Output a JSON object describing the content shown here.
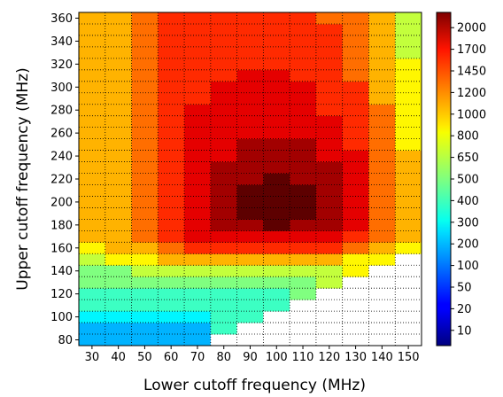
{
  "chart_data": {
    "type": "heatmap",
    "xlabel": "Lower cutoff frequency (MHz)",
    "ylabel": "Upper cutoff frequency (MHz)",
    "x_categories": [
      "30",
      "40",
      "50",
      "60",
      "70",
      "80",
      "90",
      "100",
      "110",
      "120",
      "130",
      "140",
      "150"
    ],
    "y_categories": [
      "80",
      "90",
      "100",
      "110",
      "120",
      "130",
      "140",
      "150",
      "160",
      "170",
      "180",
      "190",
      "200",
      "210",
      "220",
      "230",
      "240",
      "250",
      "260",
      "270",
      "280",
      "290",
      "300",
      "310",
      "320",
      "330",
      "340",
      "350",
      "360"
    ],
    "y_tick_labels": [
      "80",
      "100",
      "120",
      "140",
      "160",
      "180",
      "200",
      "220",
      "240",
      "260",
      "280",
      "300",
      "320",
      "340",
      "360"
    ],
    "colorbar_ticks": [
      "10",
      "20",
      "50",
      "100",
      "200",
      "300",
      "400",
      "500",
      "650",
      "800",
      "1000",
      "1200",
      "1450",
      "1700",
      "2000"
    ],
    "colorbar_range": [
      10,
      2200
    ],
    "colormap": "jet",
    "grid": true,
    "grid_style": "dotted",
    "missing_color": "#ffffff",
    "values": [
      [
        5,
        5,
        5,
        5,
        5,
        0,
        0,
        0,
        0,
        0,
        0,
        0,
        0
      ],
      [
        5,
        5,
        5,
        5,
        5,
        7,
        0,
        0,
        0,
        0,
        0,
        0,
        0
      ],
      [
        6,
        6,
        6,
        6,
        6,
        7,
        7,
        0,
        0,
        0,
        0,
        0,
        0
      ],
      [
        7,
        7,
        7,
        7,
        7,
        7,
        7,
        7,
        0,
        0,
        0,
        0,
        0
      ],
      [
        7,
        7,
        7,
        7,
        7,
        7,
        7,
        7,
        8,
        0,
        0,
        0,
        0
      ],
      [
        8,
        8,
        8,
        8,
        8,
        8,
        8,
        8,
        8,
        9,
        0,
        0,
        0
      ],
      [
        8,
        8,
        9,
        9,
        9,
        9,
        9,
        9,
        9,
        9,
        10,
        0,
        0
      ],
      [
        9,
        10,
        10,
        11,
        11,
        11,
        11,
        11,
        11,
        11,
        10,
        10,
        0
      ],
      [
        10,
        11,
        11,
        12,
        13,
        13,
        13,
        13,
        13,
        13,
        12,
        11,
        10
      ],
      [
        11,
        11,
        12,
        13,
        14,
        14,
        14,
        14,
        14,
        14,
        13,
        12,
        11
      ],
      [
        11,
        11,
        12,
        13,
        14,
        15,
        15,
        16,
        15,
        15,
        14,
        12,
        11
      ],
      [
        11,
        11,
        12,
        13,
        14,
        15,
        16,
        16,
        16,
        15,
        14,
        12,
        11
      ],
      [
        11,
        11,
        12,
        13,
        14,
        15,
        16,
        16,
        16,
        15,
        14,
        12,
        11
      ],
      [
        11,
        11,
        12,
        13,
        14,
        15,
        16,
        16,
        16,
        15,
        14,
        12,
        11
      ],
      [
        11,
        11,
        12,
        13,
        14,
        15,
        15,
        16,
        15,
        15,
        14,
        12,
        11
      ],
      [
        11,
        11,
        12,
        13,
        14,
        15,
        15,
        15,
        15,
        15,
        14,
        12,
        11
      ],
      [
        11,
        11,
        12,
        13,
        14,
        14,
        15,
        15,
        15,
        14,
        14,
        12,
        11
      ],
      [
        11,
        11,
        12,
        13,
        14,
        14,
        15,
        15,
        15,
        14,
        13,
        12,
        10
      ],
      [
        11,
        11,
        12,
        13,
        14,
        14,
        14,
        14,
        14,
        14,
        13,
        12,
        10
      ],
      [
        11,
        11,
        12,
        13,
        14,
        14,
        14,
        14,
        14,
        14,
        13,
        12,
        10
      ],
      [
        11,
        11,
        12,
        13,
        14,
        14,
        14,
        14,
        14,
        13,
        13,
        12,
        10
      ],
      [
        11,
        11,
        12,
        13,
        13,
        14,
        14,
        14,
        14,
        13,
        13,
        11,
        10
      ],
      [
        11,
        11,
        12,
        13,
        13,
        14,
        14,
        14,
        14,
        13,
        13,
        11,
        10
      ],
      [
        11,
        11,
        12,
        13,
        13,
        13,
        14,
        14,
        13,
        13,
        12,
        11,
        10
      ],
      [
        11,
        11,
        12,
        13,
        13,
        13,
        13,
        13,
        13,
        13,
        12,
        11,
        10
      ],
      [
        11,
        11,
        12,
        13,
        13,
        13,
        13,
        13,
        13,
        13,
        12,
        11,
        9
      ],
      [
        11,
        11,
        12,
        13,
        13,
        13,
        13,
        13,
        13,
        13,
        12,
        11,
        9
      ],
      [
        11,
        11,
        12,
        13,
        13,
        13,
        13,
        13,
        13,
        13,
        12,
        11,
        9
      ],
      [
        11,
        11,
        12,
        13,
        13,
        13,
        13,
        13,
        13,
        12,
        12,
        11,
        9
      ]
    ],
    "values_encoding": "colorbar tick index (0 = missing)"
  }
}
